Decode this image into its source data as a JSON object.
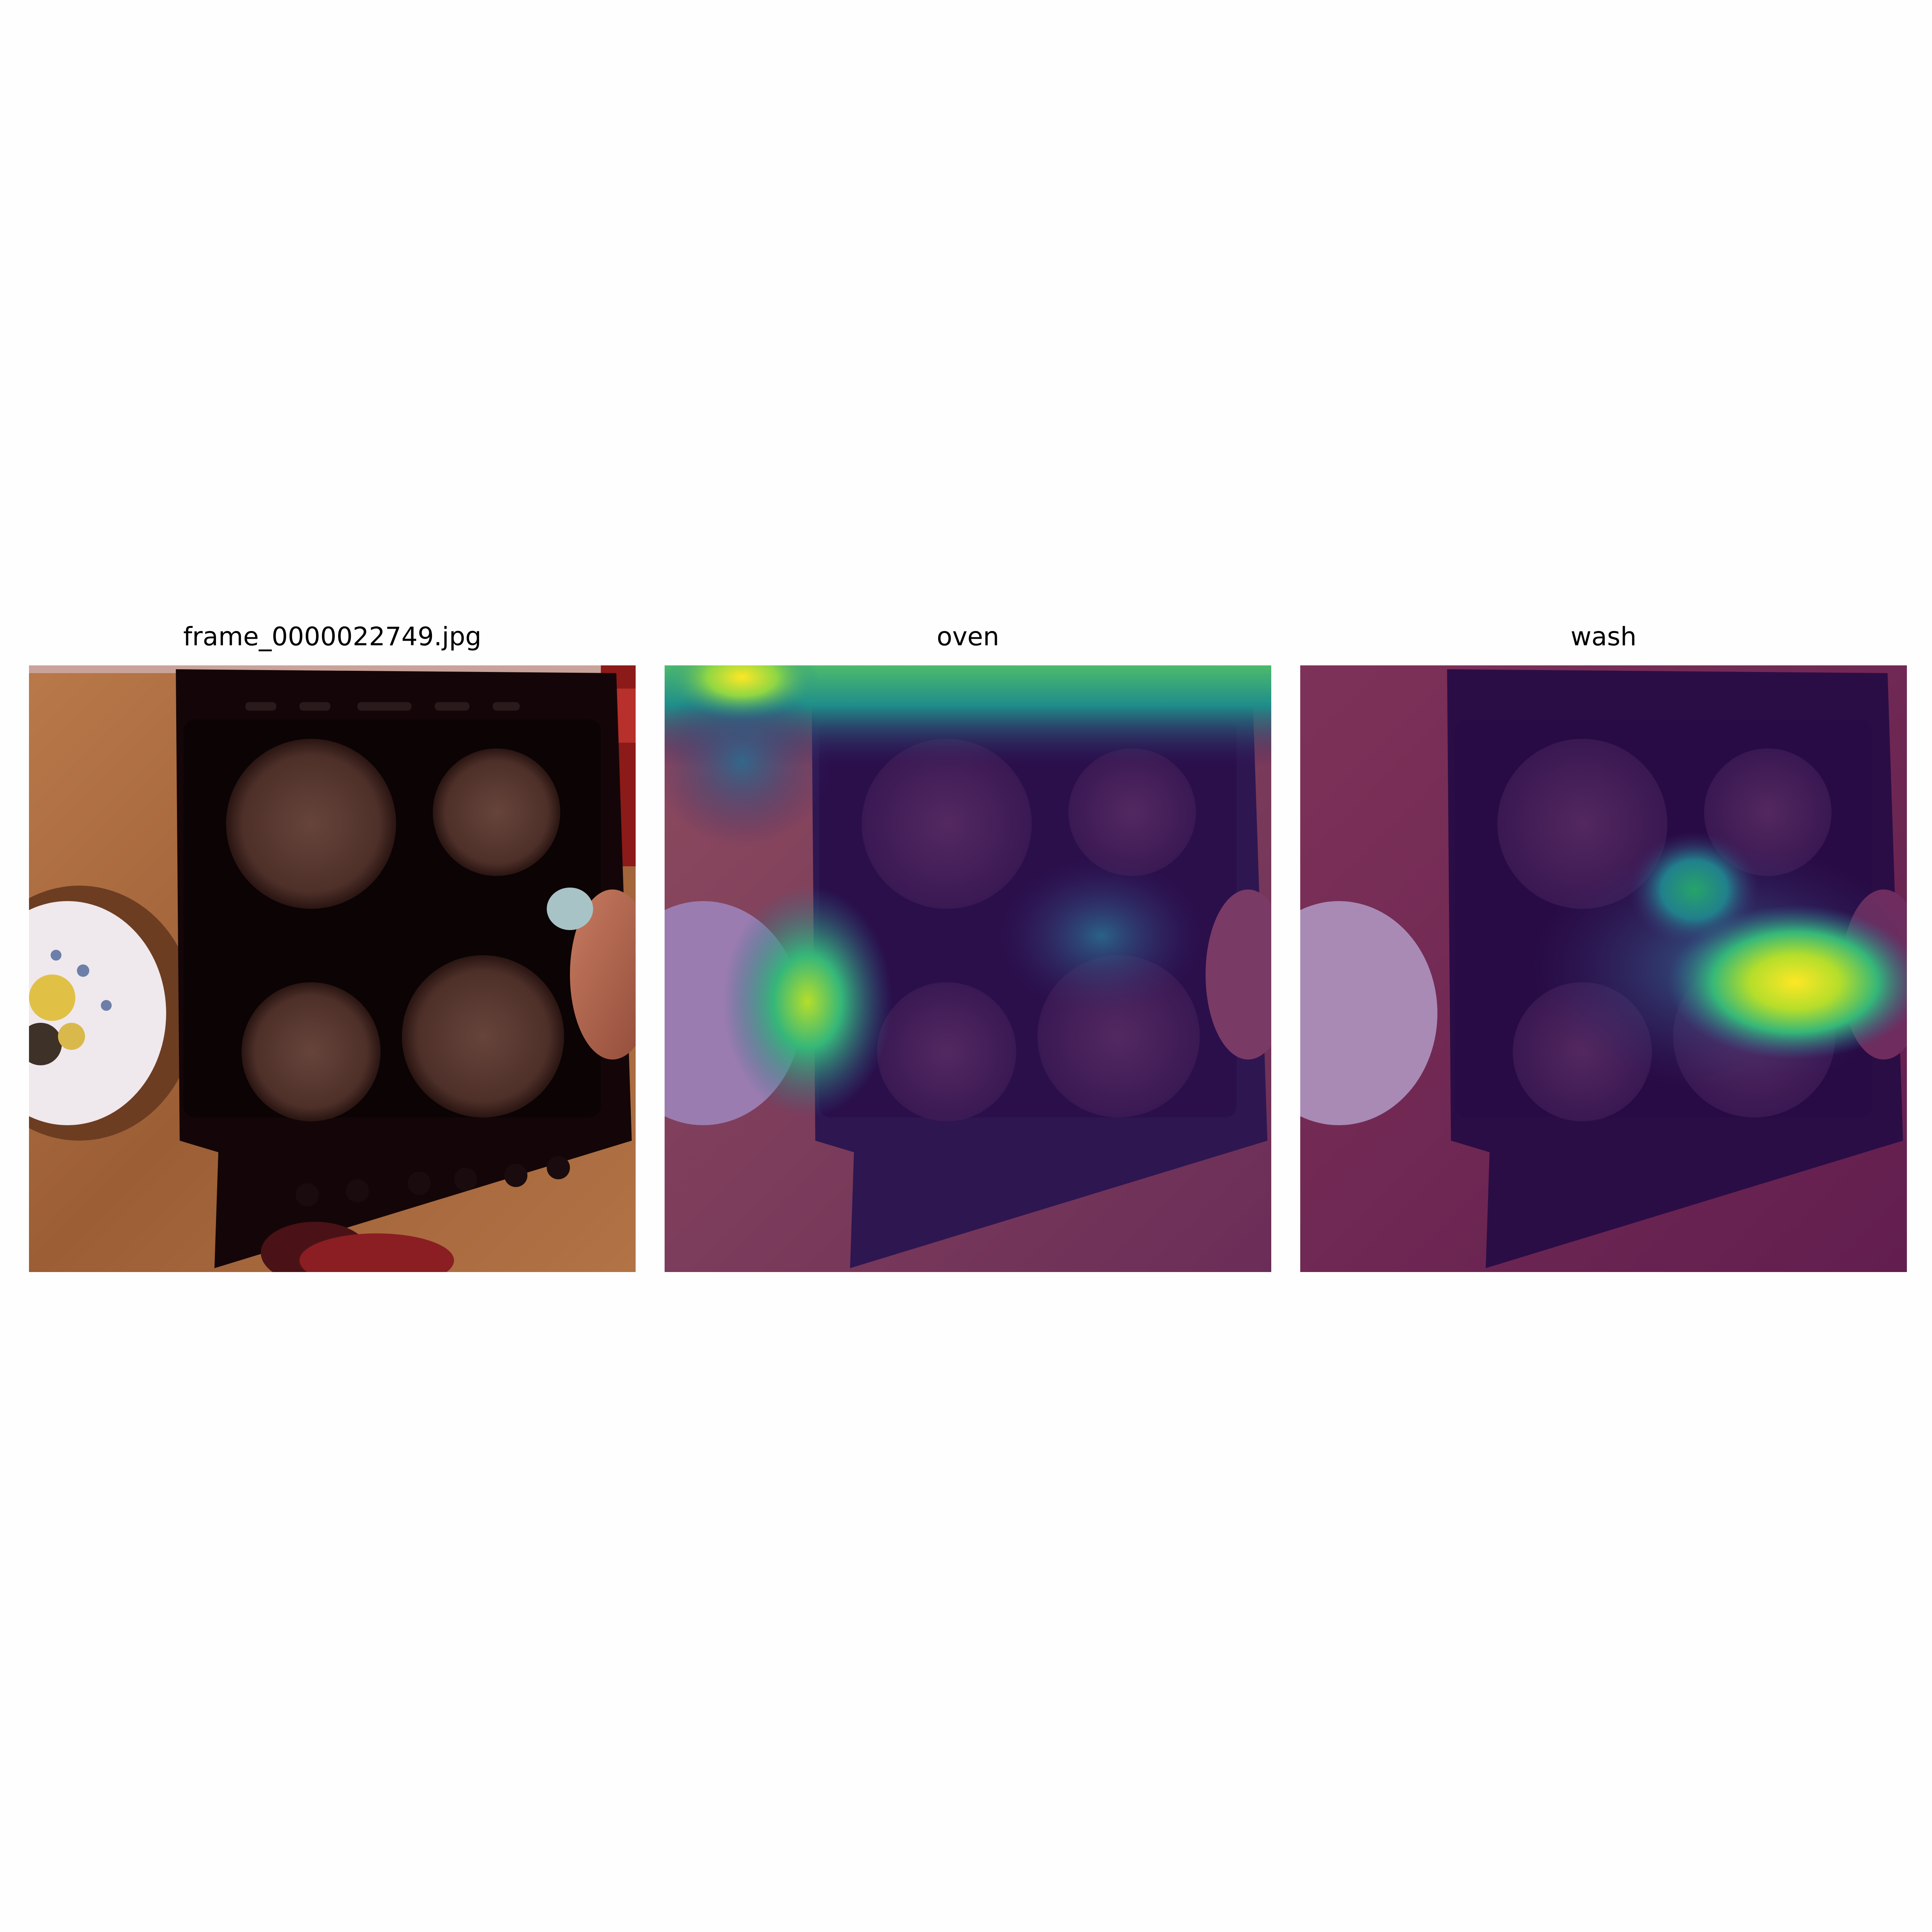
{
  "panels": [
    {
      "title": "frame_0000022749.jpg",
      "kind": "photo"
    },
    {
      "title": "oven",
      "kind": "heatmap-overlay",
      "colormap": "viridis"
    },
    {
      "title": "wash",
      "kind": "heatmap-overlay",
      "colormap": "viridis"
    }
  ],
  "colors": {
    "wood": "#a86a3c",
    "stove": "#140608",
    "burner": "#5a3a34",
    "overlay_low": "#440154",
    "overlay_mid": "#21908c",
    "overlay_high": "#fde725"
  }
}
